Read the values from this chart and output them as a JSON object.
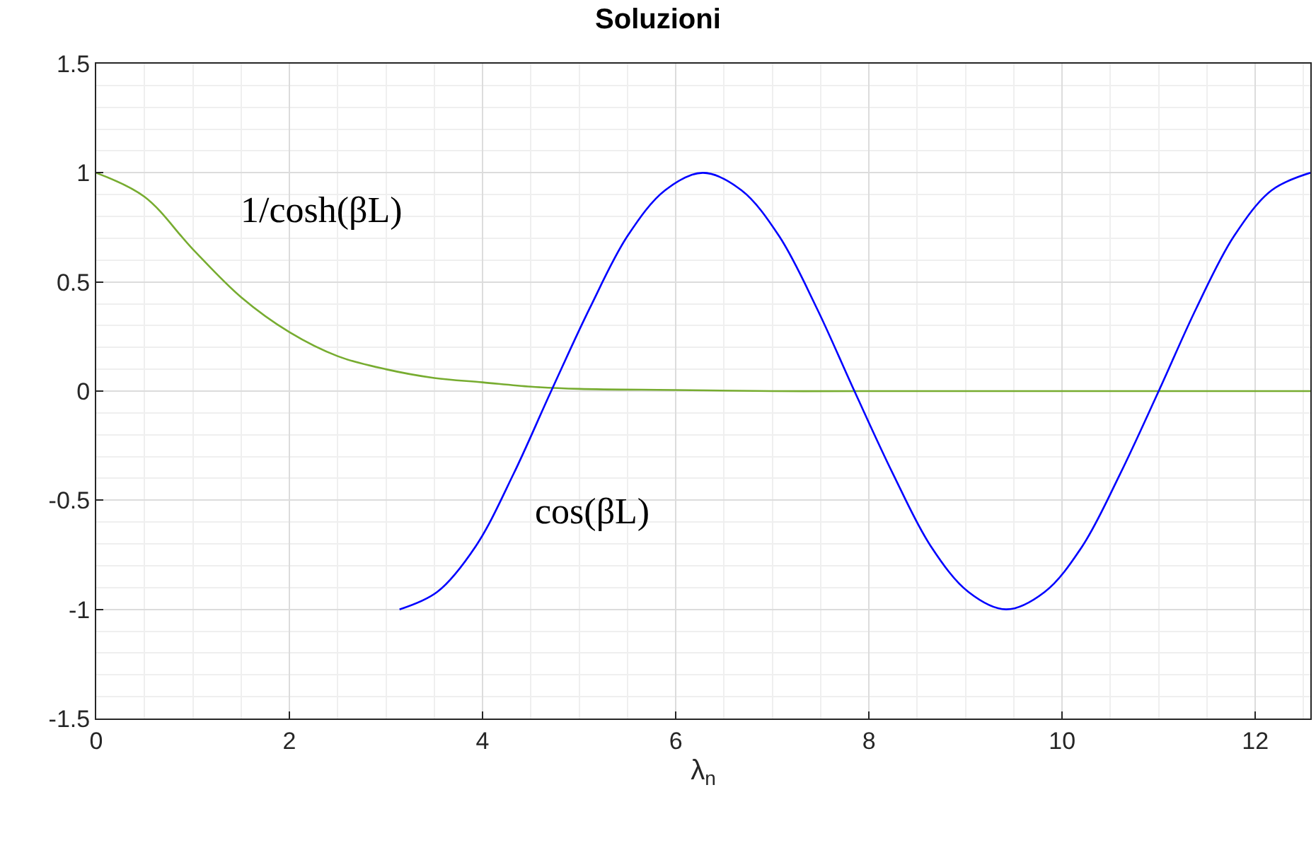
{
  "chart_data": {
    "type": "line",
    "title": "Soluzioni",
    "xlabel": "λ$_{n}$",
    "xlim": [
      0,
      12.57
    ],
    "xticks": [
      0,
      2,
      4,
      6,
      8,
      10,
      12
    ],
    "ylim": [
      -1.5,
      1.5
    ],
    "yticks": [
      -1.5,
      -1,
      -0.5,
      0,
      0.5,
      1,
      1.5
    ],
    "grid": true,
    "legend": false,
    "marker": "none",
    "line_style": "solid",
    "series": [
      {
        "name": "1/cosh(βL)",
        "color": "#77ac30",
        "x": [
          0,
          0.5,
          1,
          1.5,
          2,
          2.5,
          3,
          3.5,
          4,
          4.5,
          5,
          6,
          7,
          8,
          10,
          12.57
        ],
        "values": [
          1,
          0.89,
          0.65,
          0.43,
          0.27,
          0.16,
          0.1,
          0.06,
          0.04,
          0.02,
          0.01,
          0.005,
          0,
          0,
          0,
          0
        ]
      },
      {
        "name": "cos(βL)",
        "color": "#0000ff",
        "x": [
          3.14,
          3.53,
          3.93,
          4.32,
          4.71,
          5.11,
          5.5,
          5.89,
          6.28,
          6.68,
          7.07,
          7.46,
          7.85,
          8.25,
          8.64,
          9.03,
          9.42,
          9.82,
          10.21,
          10.6,
          11,
          11.39,
          11.78,
          12.17,
          12.57
        ],
        "values": [
          -1,
          -0.92,
          -0.71,
          -0.38,
          0,
          0.38,
          0.71,
          0.92,
          1,
          0.92,
          0.71,
          0.38,
          0,
          -0.38,
          -0.71,
          -0.92,
          -1,
          -0.92,
          -0.71,
          -0.38,
          0,
          0.38,
          0.71,
          0.92,
          1
        ]
      }
    ]
  }
}
